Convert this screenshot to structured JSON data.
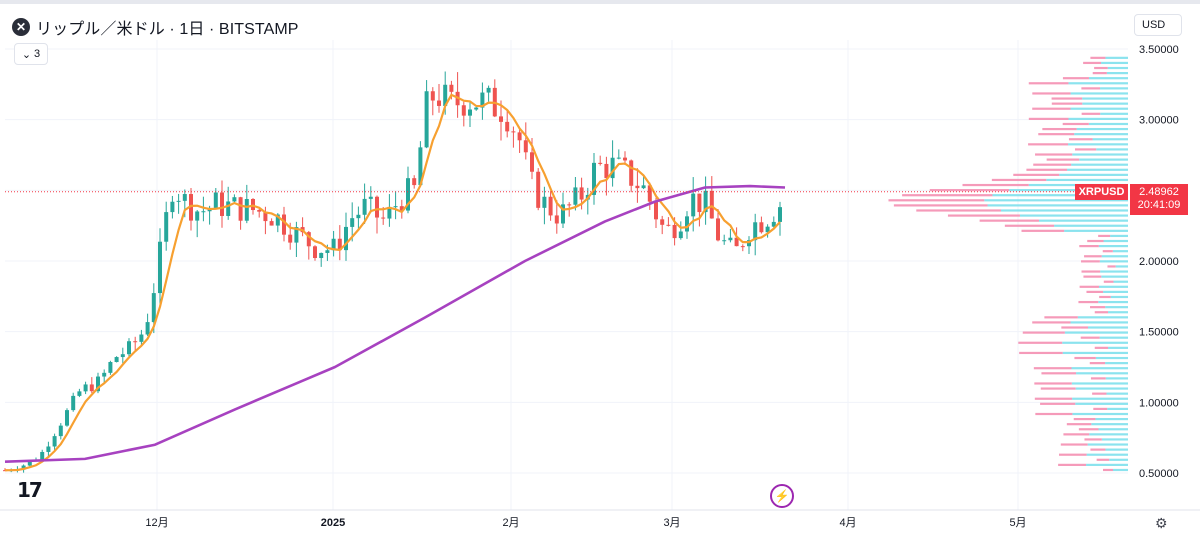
{
  "header": {
    "symbol_icon": "xrp-logo-icon",
    "title": "リップル／米ドル · 1日 · BITSTAMP",
    "indicator_count": "3",
    "currency": "USD"
  },
  "price_tag": {
    "symbol": "XRPUSD",
    "price": "2.48962",
    "countdown": "20:41:09"
  },
  "logo": "17",
  "colors": {
    "up": "#26a69a",
    "down": "#ef5350",
    "ma_short": "#f7a030",
    "ma_long": "#a742c0",
    "vp_up": "#7ee0ec",
    "vp_down": "#f48fb1",
    "grid": "#f0f3fa",
    "price_line": "#f23645"
  },
  "chart_data": {
    "type": "candlestick",
    "y_ticks": [
      "3.50000",
      "3.00000",
      "2.50000",
      "2.00000",
      "1.50000",
      "1.00000",
      "0.50000"
    ],
    "ylim": [
      0.46,
      3.55
    ],
    "x_ticks": [
      "12月",
      "2025",
      "2月",
      "3月",
      "4月",
      "5月"
    ],
    "last_price": 2.48962,
    "series": [
      {
        "name": "",
        "kind": "ohlc",
        "values": []
      },
      {
        "name": "",
        "kind": "sma_short"
      },
      {
        "name": "",
        "kind": "sma_long"
      }
    ]
  }
}
